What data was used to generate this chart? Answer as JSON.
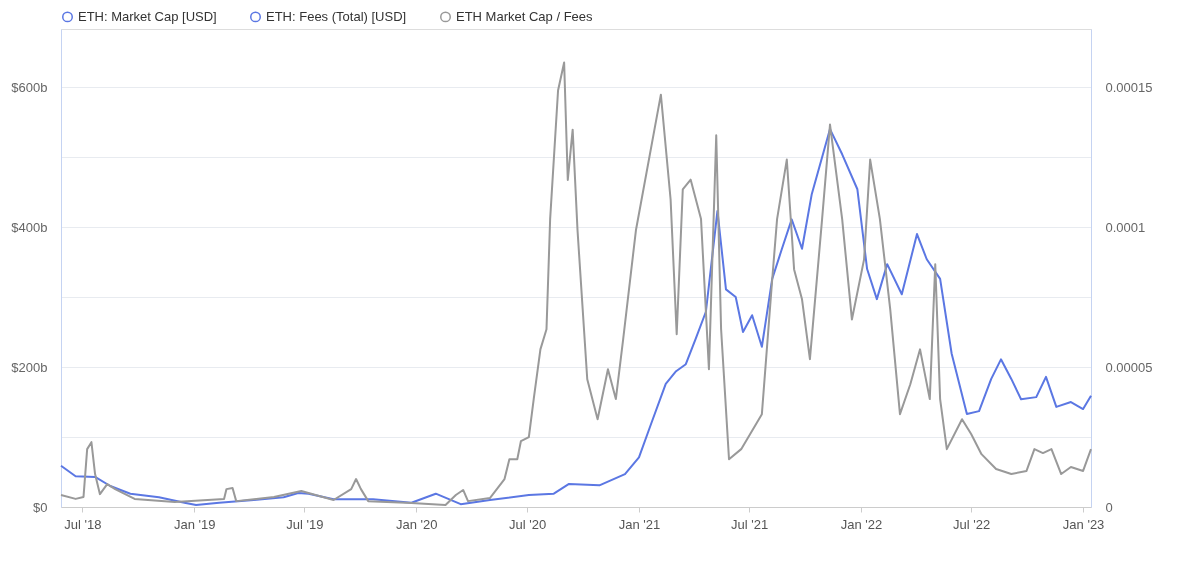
{
  "chart_data": {
    "type": "line",
    "xlim": [
      "2018-05-27",
      "2023-01-14"
    ],
    "xticks": [
      {
        "value": "2018-07-01",
        "label": "Jul '18"
      },
      {
        "value": "2019-01-01",
        "label": "Jan '19"
      },
      {
        "value": "2019-07-01",
        "label": "Jul '19"
      },
      {
        "value": "2020-01-01",
        "label": "Jan '20"
      },
      {
        "value": "2020-07-01",
        "label": "Jul '20"
      },
      {
        "value": "2021-01-01",
        "label": "Jan '21"
      },
      {
        "value": "2021-07-01",
        "label": "Jul '21"
      },
      {
        "value": "2022-01-01",
        "label": "Jan '22"
      },
      {
        "value": "2022-07-01",
        "label": "Jul '22"
      },
      {
        "value": "2023-01-01",
        "label": "Jan '23"
      }
    ],
    "ylim": [
      0,
      683
    ],
    "yticks": [
      {
        "value": 0,
        "label": "$0"
      },
      {
        "value": 100,
        "label": null
      },
      {
        "value": 200,
        "label": "$200b"
      },
      {
        "value": 300,
        "label": null
      },
      {
        "value": 400,
        "label": "$400b"
      },
      {
        "value": 500,
        "label": null
      },
      {
        "value": 600,
        "label": "$600b"
      }
    ],
    "y2lim": [
      0,
      0.000171
    ],
    "y2ticks": [
      {
        "value": 0,
        "label": "0"
      },
      {
        "value": 5e-05,
        "label": "0.00005"
      },
      {
        "value": 0.0001,
        "label": "0.0001"
      },
      {
        "value": 0.00015,
        "label": "0.00015"
      }
    ],
    "grid": "y",
    "legend": "top left",
    "marker": "none",
    "line_style": "solid",
    "series": [
      {
        "name": "ETH: Market Cap [USD]",
        "color": "#5b77e3",
        "x": [
          "2018-05-27",
          "2018-06-20",
          "2018-07-22",
          "2018-08-16",
          "2018-09-18",
          "2018-11-04",
          "2018-12-16",
          "2019-01-04",
          "2019-02-11",
          "2019-04-09",
          "2019-05-28",
          "2019-06-21",
          "2019-07-08",
          "2019-08-18",
          "2019-10-22",
          "2019-12-24",
          "2020-02-02",
          "2020-03-14",
          "2020-05-01",
          "2020-07-04",
          "2020-08-14",
          "2020-09-08",
          "2020-10-28",
          "2020-12-09",
          "2021-01-01",
          "2021-01-21",
          "2021-02-14",
          "2021-03-03",
          "2021-03-19",
          "2021-04-04",
          "2021-04-21",
          "2021-05-10",
          "2021-05-24",
          "2021-06-09",
          "2021-06-21",
          "2021-07-06",
          "2021-07-22",
          "2021-08-08",
          "2021-08-24",
          "2021-09-09",
          "2021-09-26",
          "2021-10-12",
          "2021-11-11",
          "2021-12-01",
          "2021-12-26",
          "2022-01-11",
          "2022-01-27",
          "2022-02-13",
          "2022-03-09",
          "2022-04-03",
          "2022-04-19",
          "2022-05-11",
          "2022-05-30",
          "2022-06-24",
          "2022-07-14",
          "2022-08-03",
          "2022-08-19",
          "2022-09-05",
          "2022-09-21",
          "2022-10-16",
          "2022-11-01",
          "2022-11-18",
          "2022-12-12",
          "2023-01-01",
          "2023-01-14"
        ],
        "values": [
          59,
          44,
          43,
          30,
          19,
          14,
          6,
          3,
          6,
          10,
          14,
          20,
          19,
          11,
          11,
          6,
          19,
          4,
          10,
          17,
          19,
          33,
          31,
          47,
          71,
          119,
          176,
          194,
          204,
          240,
          279,
          423,
          311,
          300,
          250,
          274,
          229,
          326,
          369,
          411,
          369,
          447,
          540,
          504,
          454,
          340,
          297,
          347,
          304,
          390,
          354,
          326,
          219,
          133,
          137,
          183,
          211,
          183,
          154,
          157,
          186,
          143,
          150,
          140,
          159
        ]
      },
      {
        "name": "ETH: Fees (Total) [USD]",
        "color": "#5b77e3"
      },
      {
        "name": "ETH Market Cap / Fees",
        "color": "#999999",
        "axis": "y2",
        "x": [
          "2018-05-27",
          "2018-06-20",
          "2018-07-03",
          "2018-07-09",
          "2018-07-16",
          "2018-07-22",
          "2018-07-30",
          "2018-08-11",
          "2018-08-24",
          "2018-09-25",
          "2018-11-30",
          "2019-02-19",
          "2019-02-23",
          "2019-03-05",
          "2019-03-11",
          "2019-05-12",
          "2019-06-26",
          "2019-08-18",
          "2019-09-16",
          "2019-09-24",
          "2019-10-02",
          "2019-10-14",
          "2019-12-24",
          "2020-02-18",
          "2020-03-06",
          "2020-03-18",
          "2020-03-26",
          "2020-05-01",
          "2020-05-25",
          "2020-06-02",
          "2020-06-15",
          "2020-06-21",
          "2020-07-04",
          "2020-07-12",
          "2020-07-23",
          "2020-08-02",
          "2020-08-08",
          "2020-08-21",
          "2020-08-31",
          "2020-09-06",
          "2020-09-14",
          "2020-09-22",
          "2020-10-08",
          "2020-10-25",
          "2020-11-11",
          "2020-11-24",
          "2020-12-06",
          "2020-12-27",
          "2021-02-06",
          "2021-02-22",
          "2021-03-04",
          "2021-03-14",
          "2021-03-27",
          "2021-04-13",
          "2021-04-26",
          "2021-05-08",
          "2021-05-16",
          "2021-05-29",
          "2021-06-18",
          "2021-07-22",
          "2021-08-08",
          "2021-08-16",
          "2021-09-01",
          "2021-09-13",
          "2021-09-26",
          "2021-10-09",
          "2021-10-29",
          "2021-11-11",
          "2021-12-01",
          "2021-12-17",
          "2022-01-06",
          "2022-01-16",
          "2022-02-01",
          "2022-02-18",
          "2022-03-06",
          "2022-03-23",
          "2022-04-08",
          "2022-04-24",
          "2022-05-03",
          "2022-05-11",
          "2022-05-22",
          "2022-06-16",
          "2022-07-01",
          "2022-07-18",
          "2022-08-11",
          "2022-09-05",
          "2022-09-30",
          "2022-10-13",
          "2022-10-27",
          "2022-11-10",
          "2022-11-26",
          "2022-12-12",
          "2023-01-01",
          "2023-01-14"
        ],
        "values": [
          4.3e-06,
          2.9e-06,
          3.6e-06,
          2.07e-05,
          2.32e-05,
          1.18e-05,
          4.6e-06,
          8.2e-06,
          6.4e-06,
          2.9e-06,
          1.8e-06,
          2.9e-06,
          6.4e-06,
          6.8e-06,
          2.1e-06,
          3.6e-06,
          5.7e-06,
          2.5e-06,
          6.4e-06,
          1e-05,
          6.4e-06,
          2.1e-06,
          1.4e-06,
          7e-07,
          4.3e-06,
          6.1e-06,
          2.1e-06,
          3.2e-06,
          1e-05,
          1.71e-05,
          1.71e-05,
          2.36e-05,
          2.5e-05,
          3.86e-05,
          5.64e-05,
          6.36e-05,
          0.000103,
          0.000149,
          0.000159,
          0.000117,
          0.000135,
          9.9e-05,
          4.57e-05,
          3.14e-05,
          4.93e-05,
          3.86e-05,
          6e-05,
          9.9e-05,
          0.0001475,
          0.00011,
          6.18e-05,
          0.0001136,
          0.0001171,
          0.000103,
          4.93e-05,
          0.000133,
          6.36e-05,
          1.71e-05,
          2.07e-05,
          3.32e-05,
          8.14e-05,
          0.000103,
          0.0001243,
          8.5e-05,
          7.43e-05,
          5.29e-05,
          0.000103,
          0.0001368,
          0.000103,
          6.71e-05,
          8.86e-05,
          0.0001243,
          0.000103,
          7.07e-05,
          3.32e-05,
          4.39e-05,
          5.64e-05,
          3.86e-05,
          8.68e-05,
          3.86e-05,
          2.07e-05,
          3.14e-05,
          2.61e-05,
          1.89e-05,
          1.36e-05,
          1.18e-05,
          1.29e-05,
          2.07e-05,
          1.93e-05,
          2.07e-05,
          1.18e-05,
          1.43e-05,
          1.29e-05,
          2.07e-05
        ]
      }
    ]
  }
}
